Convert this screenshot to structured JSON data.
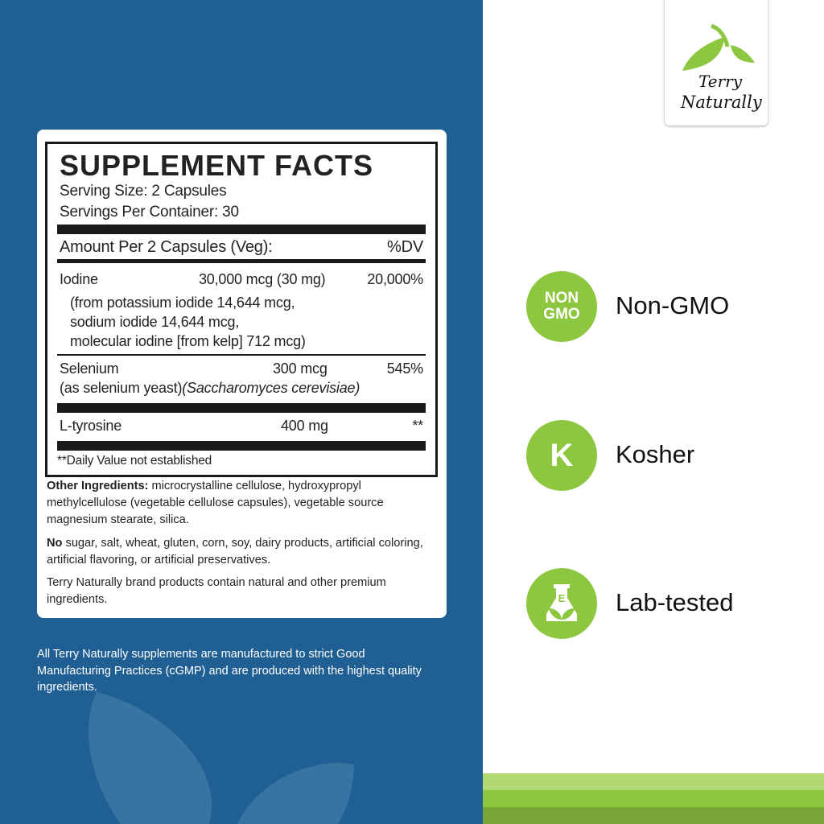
{
  "facts": {
    "title": "SUPPLEMENT FACTS",
    "serving_size": "Serving Size: 2 Capsules",
    "servings_per_container": "Servings Per Container: 30",
    "amount_header": "Amount Per 2 Capsules (Veg):",
    "dv_header": "%DV",
    "rows": [
      {
        "name": "Iodine",
        "amount": "30,000 mcg (30 mg)",
        "dv": "20,000%",
        "detail": [
          "(from potassium iodide 14,644 mcg,",
          "sodium iodide 14,644 mcg,",
          "molecular iodine [from kelp] 712 mcg)"
        ]
      },
      {
        "name": "Selenium",
        "amount": "300 mcg",
        "dv": "545%",
        "detail": [
          "(as selenium yeast)",
          "(Saccharomyces cerevisiae)"
        ]
      },
      {
        "name": "L-tyrosine",
        "amount": "400 mg",
        "dv": "**"
      }
    ],
    "footnote": "**Daily Value not established"
  },
  "other": {
    "label": "Other Ingredients:",
    "text": " microcrystalline cellulose, hydroxypropyl methylcellulose (vegetable cellulose capsules), vegetable source magnesium stearate, silica.",
    "no_label": "No",
    "no_text": " sugar, salt, wheat, gluten, corn, soy, dairy products, artificial coloring, artificial flavoring, or artificial preservatives.",
    "brand_note": "Terry Naturally brand products contain natural and other premium ingredients."
  },
  "footer": "All Terry Naturally supplements are manufactured to strict Good Manufacturing Practices (cGMP) and are produced with the highest quality ingredients.",
  "logo": {
    "line1": "Terry",
    "line2": "Naturally"
  },
  "badges": [
    {
      "icon": "non-gmo-icon",
      "icon_text_1": "NON",
      "icon_text_2": "GMO",
      "label": "Non-GMO"
    },
    {
      "icon": "kosher-icon",
      "icon_text_1": "K",
      "label": "Kosher"
    },
    {
      "icon": "lab-flask-icon",
      "label": "Lab-tested"
    }
  ],
  "colors": {
    "blue": "#1f5f93",
    "green": "#8dc63f",
    "stripe_light": "#b1d872",
    "stripe_mid": "#8dc63f",
    "stripe_dark": "#7aa638"
  }
}
